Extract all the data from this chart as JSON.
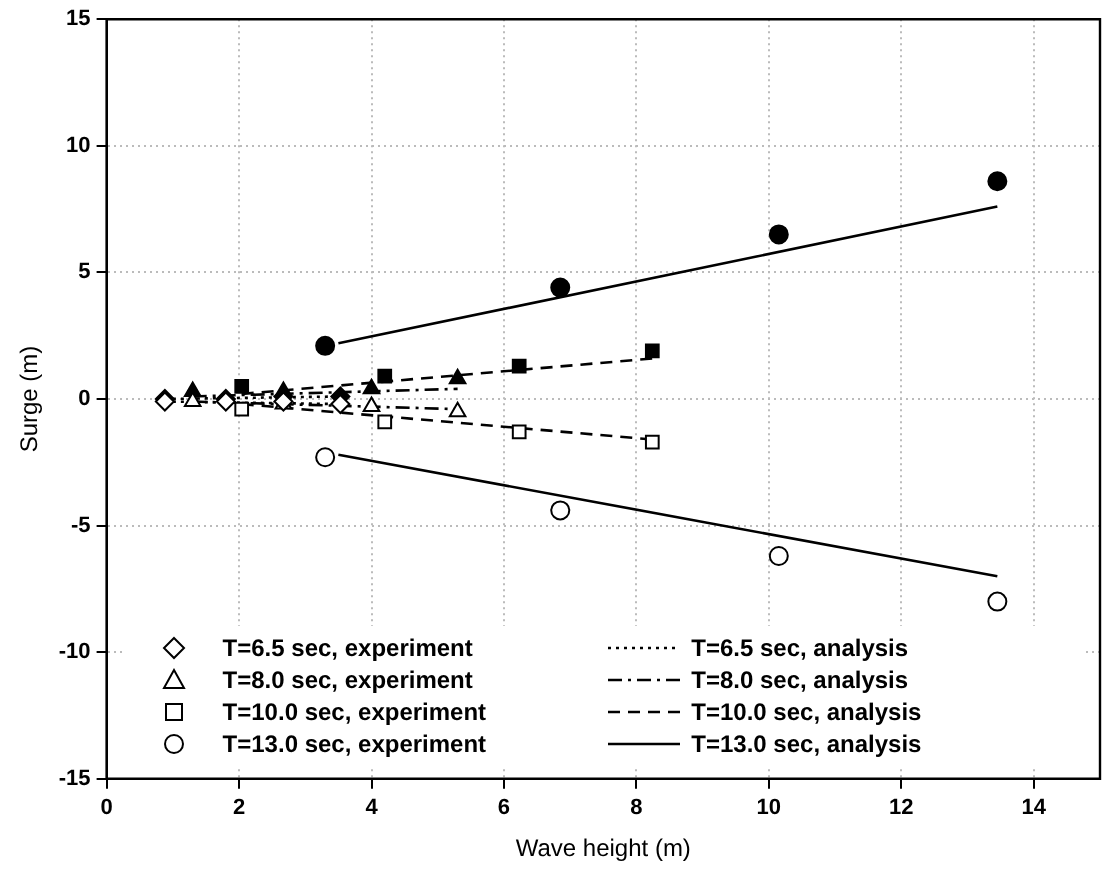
{
  "chart_data": {
    "type": "scatter",
    "xlabel": "Wave height (m)",
    "ylabel": "Surge (m)",
    "xlim": [
      0,
      15
    ],
    "ylim": [
      -15,
      15
    ],
    "xticks": [
      0,
      2,
      4,
      6,
      8,
      10,
      12,
      14
    ],
    "yticks": [
      -15,
      -10,
      -5,
      0,
      5,
      10,
      15
    ],
    "grid": true,
    "legend": "bottom",
    "series": [
      {
        "name": "T=6.5 sec, experiment",
        "type": "scatter",
        "marker": "diamond",
        "color": "#000000",
        "x": [
          0.88,
          1.8,
          2.67,
          3.53
        ],
        "values": [
          -0.1,
          -0.1,
          -0.1,
          -0.2
        ]
      },
      {
        "name": "T=8.0 sec, experiment",
        "type": "scatter",
        "marker": "triangle",
        "color": "#000000",
        "x": [
          1.3,
          2.67,
          4.0,
          5.3
        ],
        "values": [
          -0.1,
          -0.2,
          -0.3,
          -0.5
        ]
      },
      {
        "name": "T=10.0 sec, experiment",
        "type": "scatter",
        "marker": "square",
        "color": "#000000",
        "x": [
          2.04,
          4.2,
          6.23,
          8.24
        ],
        "values": [
          -0.4,
          -0.9,
          -1.3,
          -1.7
        ]
      },
      {
        "name": "T=13.0 sec, experiment",
        "type": "scatter",
        "marker": "circle",
        "color": "#000000",
        "x": [
          3.3,
          6.85,
          10.15,
          13.45
        ],
        "values": [
          -2.3,
          -4.4,
          -6.2,
          -8.0
        ]
      },
      {
        "name": "T=6.5 sec, analysis",
        "type": "line",
        "line_style": "dotted",
        "marker": "none",
        "color": "#000000",
        "x": [
          0.88,
          3.53
        ],
        "values": [
          -0.1,
          -0.2
        ]
      },
      {
        "name": "T=8.0 sec, analysis",
        "type": "line",
        "line_style": "dashdot",
        "marker": "none",
        "color": "#000000",
        "x": [
          1.3,
          5.3
        ],
        "values": [
          -0.1,
          -0.4
        ]
      },
      {
        "name": "T=10.0 sec, analysis",
        "type": "line",
        "line_style": "dashed",
        "marker": "none",
        "color": "#000000",
        "x": [
          2.04,
          8.24
        ],
        "values": [
          -0.2,
          -1.6
        ]
      },
      {
        "name": "T=13.0 sec, analysis",
        "type": "line",
        "line_style": "solid",
        "marker": "none",
        "color": "#000000",
        "x": [
          3.5,
          13.45
        ],
        "values": [
          -2.2,
          -7.0
        ]
      },
      {
        "type": "scatter",
        "marker": "diamond",
        "color": "#000000",
        "x": [
          0.88,
          1.8,
          2.67,
          3.53
        ],
        "values": [
          0,
          0,
          0.1,
          0.1
        ]
      },
      {
        "type": "scatter",
        "marker": "triangle",
        "color": "#000000",
        "x": [
          1.3,
          2.67,
          4.0,
          5.3
        ],
        "values": [
          0.3,
          0.3,
          0.4,
          0.8
        ]
      },
      {
        "type": "scatter",
        "marker": "square",
        "color": "#000000",
        "x": [
          2.04,
          4.2,
          6.23,
          8.24
        ],
        "values": [
          0.5,
          0.9,
          1.3,
          1.9
        ]
      },
      {
        "type": "scatter",
        "marker": "circle",
        "color": "#000000",
        "x": [
          3.3,
          6.85,
          10.15,
          13.45
        ],
        "values": [
          2.1,
          4.4,
          6.5,
          8.6
        ]
      },
      {
        "type": "line",
        "line_style": "dotted",
        "marker": "none",
        "color": "#000000",
        "x": [
          0.88,
          3.53
        ],
        "values": [
          0,
          0.1
        ]
      },
      {
        "type": "line",
        "line_style": "dashdot",
        "marker": "none",
        "color": "#000000",
        "x": [
          1.3,
          5.3
        ],
        "values": [
          0.1,
          0.4
        ]
      },
      {
        "type": "line",
        "line_style": "dashed",
        "marker": "none",
        "color": "#000000",
        "x": [
          2.04,
          8.24
        ],
        "values": [
          0.2,
          1.6
        ]
      },
      {
        "type": "line",
        "line_style": "solid",
        "marker": "none",
        "color": "#000000",
        "x": [
          3.5,
          13.45
        ],
        "values": [
          2.2,
          7.6
        ]
      }
    ]
  }
}
